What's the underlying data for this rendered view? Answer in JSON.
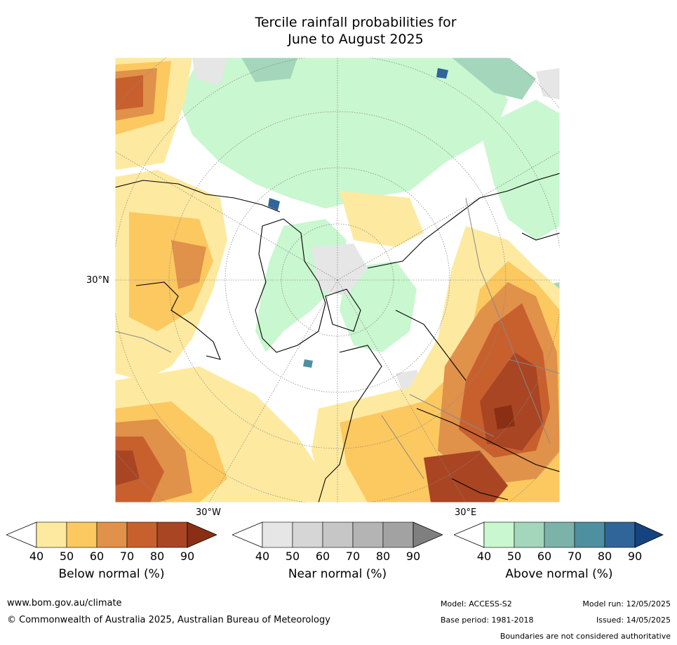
{
  "title": {
    "line1": "Tercile rainfall probabilities for",
    "line2": "June to August 2025"
  },
  "map": {
    "lat_label": "30°N",
    "lon_labels": [
      "30°W",
      "30°E"
    ]
  },
  "colorbars": [
    {
      "label": "Below normal (%)",
      "ticks": [
        "40",
        "50",
        "60",
        "70",
        "80",
        "90"
      ],
      "colors": [
        "#fdeaa0",
        "#fcc860",
        "#e0914a",
        "#c8602e",
        "#a94523",
        "#8a2f14"
      ]
    },
    {
      "label": "Near normal (%)",
      "ticks": [
        "40",
        "50",
        "60",
        "70",
        "80",
        "90"
      ],
      "colors": [
        "#e6e6e6",
        "#d6d6d6",
        "#c6c6c6",
        "#b4b4b4",
        "#a2a2a2",
        "#7f7f7f"
      ]
    },
    {
      "label": "Above normal (%)",
      "ticks": [
        "40",
        "50",
        "60",
        "70",
        "80",
        "90"
      ],
      "colors": [
        "#c9f7cf",
        "#a3d6ba",
        "#7bb2aa",
        "#4e8fa0",
        "#2f6599",
        "#14437f"
      ]
    }
  ],
  "footer": {
    "url": "www.bom.gov.au/climate",
    "copyright": "© Commonwealth of Australia 2025, Australian Bureau of Meteorology",
    "model": "Model: ACCESS-S2",
    "model_run": "Model run: 12/05/2025",
    "base_period": "Base period: 1981-2018",
    "issued": "Issued: 14/05/2025",
    "disclaimer": "Boundaries are not considered authoritative"
  }
}
